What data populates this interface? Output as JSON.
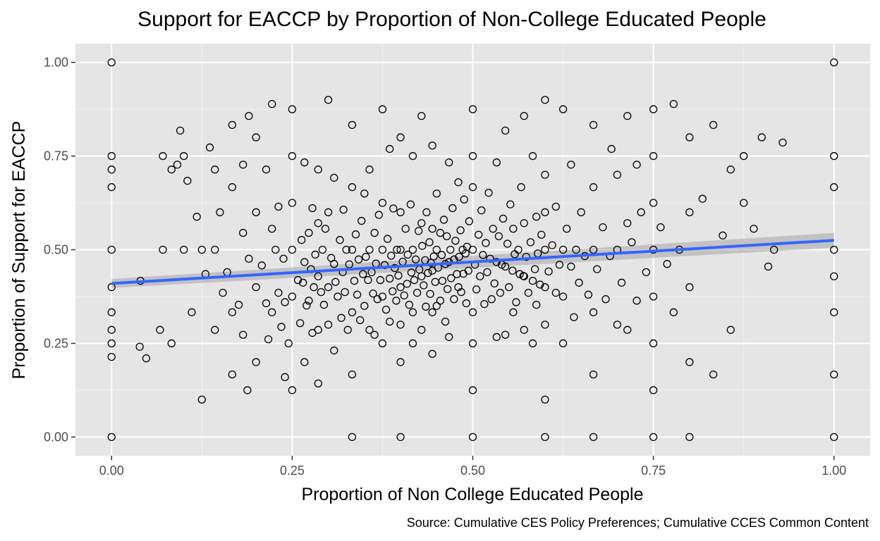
{
  "chart_data": {
    "type": "scatter",
    "title": "Support for EACCP by Proportion of Non-College Educated People",
    "xlabel": "Proportion of Non College Educated People",
    "ylabel": "Proportion of Support for EACCP",
    "caption": "Source: Cumulative CES Policy Preferences; Cumulative CCES Common Content",
    "xlim": [
      -0.05,
      1.05
    ],
    "ylim": [
      -0.05,
      1.05
    ],
    "x_ticks": [
      0.0,
      0.25,
      0.5,
      0.75,
      1.0
    ],
    "x_tick_labels": [
      "0.00",
      "0.25",
      "0.50",
      "0.75",
      "1.00"
    ],
    "y_ticks": [
      0.0,
      0.25,
      0.5,
      0.75,
      1.0
    ],
    "y_tick_labels": [
      "0.00",
      "0.25",
      "0.50",
      "0.75",
      "1.00"
    ],
    "grid": true,
    "background_color": "#e5e5e5",
    "point_style": "hollow black circles",
    "trend_line": {
      "method": "linear fit with confidence band",
      "color": "#3366ff",
      "band_color": "#a6a6a6",
      "x": [
        0.0,
        1.0
      ],
      "y": [
        0.41,
        0.525
      ],
      "band_lower": [
        0.398,
        0.505
      ],
      "band_upper": [
        0.422,
        0.545
      ]
    },
    "points": [
      [
        0.0,
        1.0
      ],
      [
        0.0,
        0.75
      ],
      [
        0.0,
        0.714
      ],
      [
        0.0,
        0.667
      ],
      [
        0.0,
        0.5
      ],
      [
        0.0,
        0.4
      ],
      [
        0.0,
        0.333
      ],
      [
        0.0,
        0.286
      ],
      [
        0.0,
        0.25
      ],
      [
        0.0,
        0.214
      ],
      [
        0.0,
        0.0
      ],
      [
        0.039,
        0.241
      ],
      [
        0.04,
        0.417
      ],
      [
        0.048,
        0.21
      ],
      [
        0.067,
        0.286
      ],
      [
        0.071,
        0.75
      ],
      [
        0.071,
        0.5
      ],
      [
        0.083,
        0.714
      ],
      [
        0.083,
        0.25
      ],
      [
        0.091,
        0.727
      ],
      [
        0.095,
        0.818
      ],
      [
        0.1,
        0.75
      ],
      [
        0.1,
        0.5
      ],
      [
        0.105,
        0.684
      ],
      [
        0.111,
        0.333
      ],
      [
        0.118,
        0.588
      ],
      [
        0.125,
        0.5
      ],
      [
        0.125,
        0.1
      ],
      [
        0.13,
        0.435
      ],
      [
        0.136,
        0.773
      ],
      [
        0.143,
        0.714
      ],
      [
        0.143,
        0.5
      ],
      [
        0.143,
        0.286
      ],
      [
        0.15,
        0.6
      ],
      [
        0.154,
        0.385
      ],
      [
        0.16,
        0.44
      ],
      [
        0.167,
        0.833
      ],
      [
        0.167,
        0.667
      ],
      [
        0.167,
        0.333
      ],
      [
        0.167,
        0.167
      ],
      [
        0.176,
        0.353
      ],
      [
        0.182,
        0.727
      ],
      [
        0.182,
        0.545
      ],
      [
        0.182,
        0.273
      ],
      [
        0.188,
        0.125
      ],
      [
        0.19,
        0.857
      ],
      [
        0.19,
        0.476
      ],
      [
        0.2,
        0.8
      ],
      [
        0.2,
        0.6
      ],
      [
        0.2,
        0.4
      ],
      [
        0.2,
        0.2
      ],
      [
        0.208,
        0.458
      ],
      [
        0.214,
        0.714
      ],
      [
        0.214,
        0.357
      ],
      [
        0.217,
        0.261
      ],
      [
        0.222,
        0.889
      ],
      [
        0.222,
        0.556
      ],
      [
        0.222,
        0.333
      ],
      [
        0.227,
        0.5
      ],
      [
        0.231,
        0.615
      ],
      [
        0.231,
        0.385
      ],
      [
        0.235,
        0.294
      ],
      [
        0.238,
        0.476
      ],
      [
        0.24,
        0.36
      ],
      [
        0.24,
        0.16
      ],
      [
        0.245,
        0.25
      ],
      [
        0.25,
        0.875
      ],
      [
        0.25,
        0.75
      ],
      [
        0.25,
        0.625
      ],
      [
        0.25,
        0.5
      ],
      [
        0.25,
        0.375
      ],
      [
        0.25,
        0.125
      ],
      [
        0.258,
        0.419
      ],
      [
        0.261,
        0.304
      ],
      [
        0.263,
        0.526
      ],
      [
        0.265,
        0.412
      ],
      [
        0.267,
        0.733
      ],
      [
        0.267,
        0.467
      ],
      [
        0.267,
        0.2
      ],
      [
        0.27,
        0.351
      ],
      [
        0.273,
        0.545
      ],
      [
        0.273,
        0.364
      ],
      [
        0.276,
        0.448
      ],
      [
        0.278,
        0.611
      ],
      [
        0.278,
        0.278
      ],
      [
        0.28,
        0.4
      ],
      [
        0.282,
        0.487
      ],
      [
        0.286,
        0.714
      ],
      [
        0.286,
        0.571
      ],
      [
        0.286,
        0.429
      ],
      [
        0.286,
        0.286
      ],
      [
        0.286,
        0.143
      ],
      [
        0.29,
        0.387
      ],
      [
        0.292,
        0.5
      ],
      [
        0.294,
        0.353
      ],
      [
        0.296,
        0.556
      ],
      [
        0.3,
        0.9
      ],
      [
        0.3,
        0.6
      ],
      [
        0.3,
        0.4
      ],
      [
        0.3,
        0.3
      ],
      [
        0.304,
        0.478
      ],
      [
        0.308,
        0.692
      ],
      [
        0.308,
        0.462
      ],
      [
        0.308,
        0.231
      ],
      [
        0.31,
        0.414
      ],
      [
        0.313,
        0.375
      ],
      [
        0.316,
        0.526
      ],
      [
        0.318,
        0.318
      ],
      [
        0.32,
        0.44
      ],
      [
        0.321,
        0.607
      ],
      [
        0.323,
        0.387
      ],
      [
        0.325,
        0.5
      ],
      [
        0.327,
        0.286
      ],
      [
        0.329,
        0.461
      ],
      [
        0.333,
        0.833
      ],
      [
        0.333,
        0.667
      ],
      [
        0.333,
        0.5
      ],
      [
        0.333,
        0.333
      ],
      [
        0.333,
        0.167
      ],
      [
        0.333,
        0.0
      ],
      [
        0.336,
        0.417
      ],
      [
        0.338,
        0.541
      ],
      [
        0.34,
        0.38
      ],
      [
        0.342,
        0.474
      ],
      [
        0.344,
        0.312
      ],
      [
        0.346,
        0.577
      ],
      [
        0.348,
        0.435
      ],
      [
        0.35,
        0.35
      ],
      [
        0.35,
        0.65
      ],
      [
        0.352,
        0.481
      ],
      [
        0.355,
        0.419
      ],
      [
        0.357,
        0.714
      ],
      [
        0.357,
        0.5
      ],
      [
        0.357,
        0.286
      ],
      [
        0.36,
        0.44
      ],
      [
        0.362,
        0.383
      ],
      [
        0.364,
        0.545
      ],
      [
        0.364,
        0.273
      ],
      [
        0.366,
        0.463
      ],
      [
        0.368,
        0.368
      ],
      [
        0.37,
        0.593
      ],
      [
        0.372,
        0.419
      ],
      [
        0.375,
        0.875
      ],
      [
        0.375,
        0.625
      ],
      [
        0.375,
        0.5
      ],
      [
        0.375,
        0.375
      ],
      [
        0.375,
        0.25
      ],
      [
        0.378,
        0.459
      ],
      [
        0.38,
        0.34
      ],
      [
        0.382,
        0.529
      ],
      [
        0.385,
        0.769
      ],
      [
        0.385,
        0.423
      ],
      [
        0.385,
        0.308
      ],
      [
        0.387,
        0.484
      ],
      [
        0.389,
        0.389
      ],
      [
        0.39,
        0.61
      ],
      [
        0.392,
        0.451
      ],
      [
        0.394,
        0.364
      ],
      [
        0.395,
        0.5
      ],
      [
        0.397,
        0.431
      ],
      [
        0.4,
        0.8
      ],
      [
        0.4,
        0.6
      ],
      [
        0.4,
        0.5
      ],
      [
        0.4,
        0.4
      ],
      [
        0.4,
        0.3
      ],
      [
        0.4,
        0.2
      ],
      [
        0.4,
        0.0
      ],
      [
        0.403,
        0.468
      ],
      [
        0.405,
        0.378
      ],
      [
        0.407,
        0.556
      ],
      [
        0.409,
        0.409
      ],
      [
        0.41,
        0.487
      ],
      [
        0.412,
        0.353
      ],
      [
        0.414,
        0.621
      ],
      [
        0.415,
        0.439
      ],
      [
        0.417,
        0.75
      ],
      [
        0.417,
        0.5
      ],
      [
        0.417,
        0.333
      ],
      [
        0.417,
        0.25
      ],
      [
        0.419,
        0.419
      ],
      [
        0.421,
        0.474
      ],
      [
        0.423,
        0.385
      ],
      [
        0.425,
        0.55
      ],
      [
        0.426,
        0.447
      ],
      [
        0.429,
        0.857
      ],
      [
        0.429,
        0.571
      ],
      [
        0.429,
        0.429
      ],
      [
        0.429,
        0.286
      ],
      [
        0.43,
        0.51
      ],
      [
        0.432,
        0.405
      ],
      [
        0.434,
        0.472
      ],
      [
        0.435,
        0.348
      ],
      [
        0.436,
        0.6
      ],
      [
        0.438,
        0.438
      ],
      [
        0.44,
        0.52
      ],
      [
        0.441,
        0.382
      ],
      [
        0.442,
        0.465
      ],
      [
        0.444,
        0.778
      ],
      [
        0.444,
        0.556
      ],
      [
        0.444,
        0.444
      ],
      [
        0.444,
        0.333
      ],
      [
        0.444,
        0.222
      ],
      [
        0.446,
        0.482
      ],
      [
        0.448,
        0.414
      ],
      [
        0.45,
        0.65
      ],
      [
        0.45,
        0.5
      ],
      [
        0.45,
        0.35
      ],
      [
        0.452,
        0.452
      ],
      [
        0.455,
        0.545
      ],
      [
        0.455,
        0.364
      ],
      [
        0.457,
        0.486
      ],
      [
        0.458,
        0.417
      ],
      [
        0.46,
        0.58
      ],
      [
        0.462,
        0.462
      ],
      [
        0.462,
        0.308
      ],
      [
        0.464,
        0.536
      ],
      [
        0.465,
        0.395
      ],
      [
        0.467,
        0.733
      ],
      [
        0.467,
        0.467
      ],
      [
        0.467,
        0.267
      ],
      [
        0.469,
        0.5
      ],
      [
        0.47,
        0.424
      ],
      [
        0.472,
        0.611
      ],
      [
        0.474,
        0.474
      ],
      [
        0.474,
        0.368
      ],
      [
        0.476,
        0.524
      ],
      [
        0.478,
        0.435
      ],
      [
        0.48,
        0.68
      ],
      [
        0.48,
        0.4
      ],
      [
        0.481,
        0.481
      ],
      [
        0.483,
        0.552
      ],
      [
        0.484,
        0.387
      ],
      [
        0.486,
        0.5
      ],
      [
        0.487,
        0.436
      ],
      [
        0.488,
        0.634
      ],
      [
        0.49,
        0.49
      ],
      [
        0.491,
        0.357
      ],
      [
        0.492,
        0.508
      ],
      [
        0.494,
        0.444
      ],
      [
        0.495,
        0.576
      ],
      [
        0.5,
        0.875
      ],
      [
        0.5,
        0.75
      ],
      [
        0.5,
        0.667
      ],
      [
        0.5,
        0.5
      ],
      [
        0.5,
        0.333
      ],
      [
        0.5,
        0.25
      ],
      [
        0.5,
        0.125
      ],
      [
        0.5,
        0.0
      ],
      [
        0.503,
        0.46
      ],
      [
        0.505,
        0.394
      ],
      [
        0.508,
        0.54
      ],
      [
        0.51,
        0.429
      ],
      [
        0.512,
        0.605
      ],
      [
        0.514,
        0.486
      ],
      [
        0.516,
        0.355
      ],
      [
        0.518,
        0.518
      ],
      [
        0.52,
        0.44
      ],
      [
        0.522,
        0.652
      ],
      [
        0.524,
        0.476
      ],
      [
        0.526,
        0.368
      ],
      [
        0.528,
        0.556
      ],
      [
        0.53,
        0.41
      ],
      [
        0.533,
        0.733
      ],
      [
        0.533,
        0.467
      ],
      [
        0.533,
        0.267
      ],
      [
        0.536,
        0.536
      ],
      [
        0.538,
        0.385
      ],
      [
        0.54,
        0.46
      ],
      [
        0.542,
        0.583
      ],
      [
        0.545,
        0.818
      ],
      [
        0.545,
        0.455
      ],
      [
        0.545,
        0.273
      ],
      [
        0.548,
        0.516
      ],
      [
        0.55,
        0.4
      ],
      [
        0.552,
        0.621
      ],
      [
        0.555,
        0.444
      ],
      [
        0.556,
        0.556
      ],
      [
        0.556,
        0.333
      ],
      [
        0.558,
        0.488
      ],
      [
        0.56,
        0.36
      ],
      [
        0.563,
        0.5
      ],
      [
        0.565,
        0.435
      ],
      [
        0.567,
        0.667
      ],
      [
        0.57,
        0.43
      ],
      [
        0.571,
        0.857
      ],
      [
        0.571,
        0.571
      ],
      [
        0.571,
        0.429
      ],
      [
        0.571,
        0.286
      ],
      [
        0.574,
        0.481
      ],
      [
        0.577,
        0.385
      ],
      [
        0.58,
        0.52
      ],
      [
        0.583,
        0.75
      ],
      [
        0.583,
        0.417
      ],
      [
        0.583,
        0.25
      ],
      [
        0.586,
        0.448
      ],
      [
        0.588,
        0.588
      ],
      [
        0.588,
        0.353
      ],
      [
        0.59,
        0.49
      ],
      [
        0.593,
        0.407
      ],
      [
        0.595,
        0.54
      ],
      [
        0.6,
        0.9
      ],
      [
        0.6,
        0.7
      ],
      [
        0.6,
        0.6
      ],
      [
        0.6,
        0.5
      ],
      [
        0.6,
        0.4
      ],
      [
        0.6,
        0.3
      ],
      [
        0.6,
        0.1
      ],
      [
        0.6,
        0.0
      ],
      [
        0.605,
        0.442
      ],
      [
        0.61,
        0.512
      ],
      [
        0.615,
        0.615
      ],
      [
        0.615,
        0.385
      ],
      [
        0.62,
        0.46
      ],
      [
        0.625,
        0.875
      ],
      [
        0.625,
        0.5
      ],
      [
        0.625,
        0.375
      ],
      [
        0.625,
        0.25
      ],
      [
        0.63,
        0.556
      ],
      [
        0.636,
        0.727
      ],
      [
        0.636,
        0.455
      ],
      [
        0.64,
        0.32
      ],
      [
        0.643,
        0.5
      ],
      [
        0.647,
        0.412
      ],
      [
        0.65,
        0.6
      ],
      [
        0.655,
        0.483
      ],
      [
        0.66,
        0.38
      ],
      [
        0.667,
        0.833
      ],
      [
        0.667,
        0.667
      ],
      [
        0.667,
        0.5
      ],
      [
        0.667,
        0.333
      ],
      [
        0.667,
        0.167
      ],
      [
        0.667,
        0.0
      ],
      [
        0.672,
        0.448
      ],
      [
        0.68,
        0.56
      ],
      [
        0.684,
        0.368
      ],
      [
        0.69,
        0.483
      ],
      [
        0.692,
        0.769
      ],
      [
        0.7,
        0.7
      ],
      [
        0.7,
        0.5
      ],
      [
        0.7,
        0.3
      ],
      [
        0.706,
        0.412
      ],
      [
        0.714,
        0.857
      ],
      [
        0.714,
        0.571
      ],
      [
        0.714,
        0.286
      ],
      [
        0.72,
        0.52
      ],
      [
        0.727,
        0.727
      ],
      [
        0.727,
        0.364
      ],
      [
        0.733,
        0.6
      ],
      [
        0.74,
        0.44
      ],
      [
        0.75,
        0.875
      ],
      [
        0.75,
        0.75
      ],
      [
        0.75,
        0.625
      ],
      [
        0.75,
        0.5
      ],
      [
        0.75,
        0.375
      ],
      [
        0.75,
        0.25
      ],
      [
        0.75,
        0.125
      ],
      [
        0.75,
        0.0
      ],
      [
        0.76,
        0.56
      ],
      [
        0.769,
        0.462
      ],
      [
        0.778,
        0.889
      ],
      [
        0.778,
        0.333
      ],
      [
        0.786,
        0.5
      ],
      [
        0.8,
        0.8
      ],
      [
        0.8,
        0.6
      ],
      [
        0.8,
        0.4
      ],
      [
        0.8,
        0.2
      ],
      [
        0.8,
        0.0
      ],
      [
        0.818,
        0.636
      ],
      [
        0.833,
        0.833
      ],
      [
        0.833,
        0.167
      ],
      [
        0.846,
        0.538
      ],
      [
        0.857,
        0.714
      ],
      [
        0.857,
        0.286
      ],
      [
        0.875,
        0.75
      ],
      [
        0.875,
        0.625
      ],
      [
        0.889,
        0.556
      ],
      [
        0.9,
        0.8
      ],
      [
        0.909,
        0.455
      ],
      [
        0.917,
        0.5
      ],
      [
        0.929,
        0.786
      ],
      [
        1.0,
        1.0
      ],
      [
        1.0,
        0.75
      ],
      [
        1.0,
        0.667
      ],
      [
        1.0,
        0.5
      ],
      [
        1.0,
        0.429
      ],
      [
        1.0,
        0.333
      ],
      [
        1.0,
        0.167
      ],
      [
        1.0,
        0.0
      ]
    ]
  }
}
